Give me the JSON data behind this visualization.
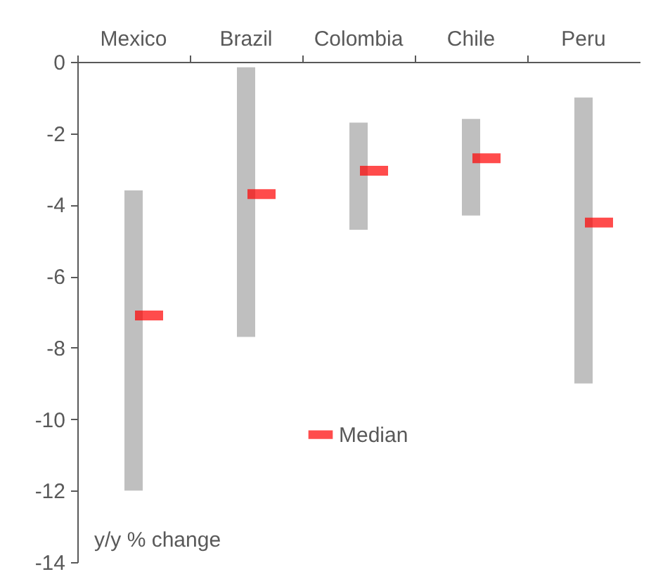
{
  "chart_data": {
    "type": "bar",
    "categories": [
      "Mexico",
      "Brazil",
      "Colombia",
      "Chile",
      "Peru"
    ],
    "series": [
      {
        "color": "#bfbfbf",
        "base": [
          -12,
          -7.7,
          -4.7,
          -4.3,
          -9.0
        ],
        "values": [
          8.4,
          7.55,
          3.0,
          2.7,
          8.0
        ]
      },
      {
        "type": "scatter",
        "name": "Median",
        "color": "#ff0000",
        "values": [
          -7.1,
          -3.7,
          -3.05,
          -2.7,
          -4.5
        ]
      }
    ],
    "ylim": [
      -14,
      0
    ],
    "yticks": [
      0,
      -2,
      -4,
      -6,
      -8,
      -10,
      -12,
      -14
    ],
    "grid": false,
    "legend": "bottom",
    "annotations": [
      "y/y % change"
    ]
  }
}
